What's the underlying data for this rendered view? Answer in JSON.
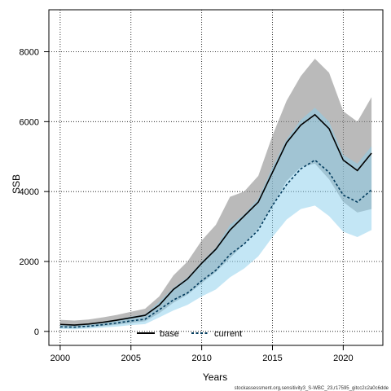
{
  "chart_data": {
    "type": "line",
    "title": "",
    "xlabel": "Years",
    "ylabel": "SSB",
    "xlim": [
      1999.2,
      2022.8
    ],
    "ylim": [
      -400,
      9200
    ],
    "xticks": [
      2000,
      2005,
      2010,
      2015,
      2020
    ],
    "yticks": [
      0,
      2000,
      4000,
      6000,
      8000
    ],
    "grid": true,
    "legend_position": "bottom",
    "x": [
      2000,
      2001,
      2002,
      2003,
      2004,
      2005,
      2006,
      2007,
      2008,
      2009,
      2010,
      2011,
      2012,
      2013,
      2014,
      2015,
      2016,
      2017,
      2018,
      2019,
      2020,
      2021,
      2022
    ],
    "series": [
      {
        "name": "base",
        "line_color": "#000000",
        "line_style": "solid",
        "band_color": "#8c8c8c",
        "values": [
          200,
          180,
          210,
          260,
          320,
          390,
          460,
          750,
          1200,
          1500,
          1950,
          2350,
          2900,
          3300,
          3700,
          4550,
          5400,
          5900,
          6200,
          5800,
          4900,
          4600,
          5100
        ],
        "upper": [
          330,
          310,
          340,
          400,
          470,
          560,
          650,
          1000,
          1600,
          2000,
          2600,
          3050,
          3850,
          4000,
          4450,
          5600,
          6600,
          7300,
          7800,
          7400,
          6300,
          6000,
          6700
        ],
        "lower": [
          110,
          100,
          120,
          150,
          190,
          240,
          290,
          520,
          820,
          1050,
          1380,
          1700,
          2100,
          2500,
          2950,
          3600,
          4300,
          4700,
          4800,
          4350,
          3700,
          3400,
          3500
        ]
      },
      {
        "name": "current",
        "line_color": "#003a5c",
        "line_style": "dashed",
        "band_color": "#87ceeb",
        "values": [
          130,
          120,
          150,
          190,
          240,
          300,
          350,
          620,
          900,
          1100,
          1450,
          1750,
          2200,
          2500,
          2900,
          3600,
          4200,
          4650,
          4900,
          4550,
          3900,
          3700,
          4050
        ],
        "upper": [
          210,
          200,
          230,
          280,
          340,
          420,
          490,
          850,
          1250,
          1550,
          2000,
          2400,
          3050,
          3350,
          3800,
          4700,
          5500,
          6050,
          6400,
          6000,
          5050,
          4800,
          5300
        ],
        "lower": [
          70,
          60,
          80,
          110,
          140,
          180,
          210,
          400,
          600,
          760,
          1000,
          1200,
          1550,
          1800,
          2150,
          2700,
          3200,
          3500,
          3600,
          3300,
          2850,
          2700,
          2900
        ]
      }
    ],
    "footer": "stockassessment.org,sensitivity3_S-WBC_23,r17595_gitcc2c2a0c6dde"
  }
}
